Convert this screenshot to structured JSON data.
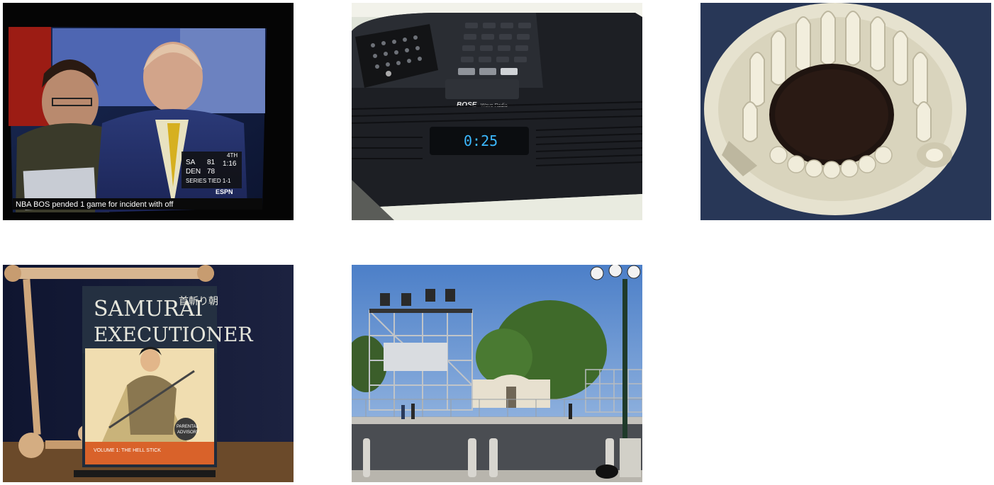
{
  "photos": [
    {
      "id": "tv",
      "ticker": "NBA    BOS    pended 1 game for incident with off",
      "score_a_team": "SA",
      "score_b_team": "DEN",
      "score_a": "81",
      "score_b": "78",
      "clock": "1:16",
      "quarter": "4TH",
      "series": "SERIES TIED 1-1",
      "network": "ESPN"
    },
    {
      "id": "radio",
      "clock_display": "0:25",
      "brand": "BOSE",
      "model": "Wave Radio"
    },
    {
      "id": "coffee-filter"
    },
    {
      "id": "book",
      "title_line1": "SAMURAI",
      "title_line2": "EXECUTIONER",
      "japanese": "首斬り朝",
      "volume": "VOLUME 1: THE HELL STICK",
      "advisory_line1": "PARENTAL",
      "advisory_line2": "ADVISORY"
    },
    {
      "id": "alamo"
    }
  ]
}
